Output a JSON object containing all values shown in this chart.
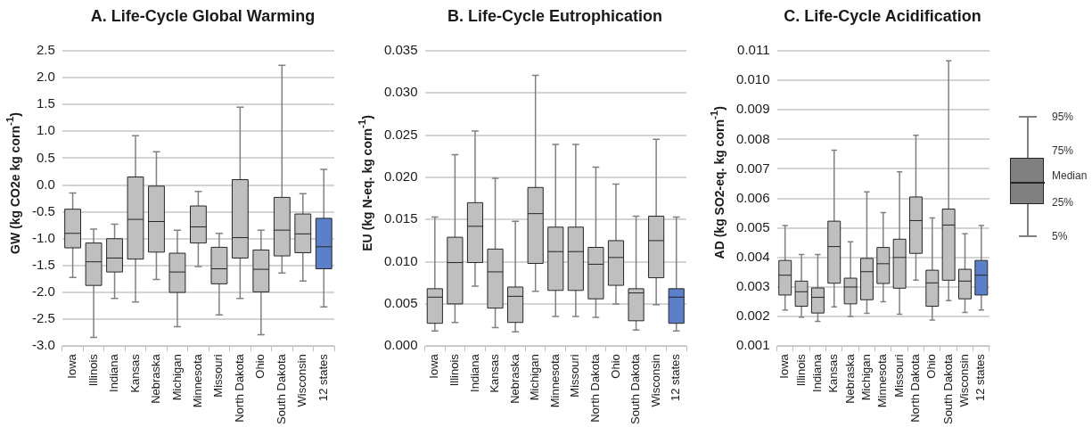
{
  "chart_data": [
    {
      "type": "box",
      "title": "A. Life-Cycle Global Warming",
      "ylabel": "GW (kg CO2e kg corn$^{-1}$)",
      "categories": [
        "Iowa",
        "Illinois",
        "Indiana",
        "Kansas",
        "Nebraska",
        "Michigan",
        "Minnesota",
        "Missouri",
        "North Dakota",
        "Ohio",
        "South Dakota",
        "Wisconsin",
        "12 states"
      ],
      "colors": [
        "#bfbfbf",
        "#bfbfbf",
        "#bfbfbf",
        "#bfbfbf",
        "#bfbfbf",
        "#bfbfbf",
        "#bfbfbf",
        "#bfbfbf",
        "#bfbfbf",
        "#bfbfbf",
        "#bfbfbf",
        "#bfbfbf",
        "#5b7fc9"
      ],
      "boxes": [
        {
          "low": -1.72,
          "q1": -1.17,
          "median": -0.9,
          "q3": -0.45,
          "high": -0.15
        },
        {
          "low": -2.84,
          "q1": -1.87,
          "median": -1.43,
          "q3": -1.08,
          "high": -0.82
        },
        {
          "low": -2.11,
          "q1": -1.62,
          "median": -1.36,
          "q3": -1.0,
          "high": -0.73
        },
        {
          "low": -2.18,
          "q1": -1.38,
          "median": -0.64,
          "q3": 0.15,
          "high": 0.92
        },
        {
          "low": -1.76,
          "q1": -1.25,
          "median": -0.68,
          "q3": -0.02,
          "high": 0.62
        },
        {
          "low": -2.64,
          "q1": -2.0,
          "median": -1.62,
          "q3": -1.27,
          "high": -0.84
        },
        {
          "low": -1.52,
          "q1": -1.08,
          "median": -0.78,
          "q3": -0.39,
          "high": -0.12
        },
        {
          "low": -2.42,
          "q1": -1.84,
          "median": -1.56,
          "q3": -1.16,
          "high": -0.9
        },
        {
          "low": -2.11,
          "q1": -1.36,
          "median": -0.98,
          "q3": 0.1,
          "high": 1.45
        },
        {
          "low": -2.79,
          "q1": -1.99,
          "median": -1.57,
          "q3": -1.21,
          "high": -0.84
        },
        {
          "low": -1.64,
          "q1": -1.32,
          "median": -0.84,
          "q3": -0.23,
          "high": 2.23
        },
        {
          "low": -1.79,
          "q1": -1.26,
          "median": -0.91,
          "q3": -0.54,
          "high": -0.16
        },
        {
          "low": -2.27,
          "q1": -1.56,
          "median": -1.15,
          "q3": -0.62,
          "high": 0.29
        }
      ],
      "ylim": [
        -3.0,
        2.5
      ],
      "yticks": [
        {
          "value": -3.0,
          "label": "-3.0"
        },
        {
          "value": -2.5,
          "label": "-2.5"
        },
        {
          "value": -2.0,
          "label": "-2.0"
        },
        {
          "value": -1.5,
          "label": "-1.5"
        },
        {
          "value": -1.0,
          "label": "-1.0"
        },
        {
          "value": -0.5,
          "label": "-0.5"
        },
        {
          "value": 0.0,
          "label": "0.0"
        },
        {
          "value": 0.5,
          "label": "0.5"
        },
        {
          "value": 1.0,
          "label": "1.0"
        },
        {
          "value": 1.5,
          "label": "1.5"
        },
        {
          "value": 2.0,
          "label": "2.0"
        },
        {
          "value": 2.5,
          "label": "2.5"
        }
      ],
      "grid": "y"
    },
    {
      "type": "box",
      "title": "B. Life-Cycle Eutrophication",
      "ylabel": "EU (kg N-eq. kg corn$^{-1}$)",
      "categories": [
        "Iowa",
        "Illinois",
        "Indiana",
        "Kansas",
        "Nebraska",
        "Michigan",
        "Minnesota",
        "Missouri",
        "North Dakota",
        "Ohio",
        "South Dakota",
        "Wisconsin",
        "12 states"
      ],
      "colors": [
        "#bfbfbf",
        "#bfbfbf",
        "#bfbfbf",
        "#bfbfbf",
        "#bfbfbf",
        "#bfbfbf",
        "#bfbfbf",
        "#bfbfbf",
        "#bfbfbf",
        "#bfbfbf",
        "#bfbfbf",
        "#bfbfbf",
        "#5b7fc9"
      ],
      "boxes": [
        {
          "low": 0.0018,
          "q1": 0.0027,
          "median": 0.0058,
          "q3": 0.0068,
          "high": 0.0153
        },
        {
          "low": 0.0028,
          "q1": 0.005,
          "median": 0.0099,
          "q3": 0.0129,
          "high": 0.0227
        },
        {
          "low": 0.0071,
          "q1": 0.0099,
          "median": 0.0142,
          "q3": 0.017,
          "high": 0.0255
        },
        {
          "low": 0.0022,
          "q1": 0.0045,
          "median": 0.0088,
          "q3": 0.0115,
          "high": 0.0199
        },
        {
          "low": 0.0017,
          "q1": 0.0028,
          "median": 0.0059,
          "q3": 0.007,
          "high": 0.0148
        },
        {
          "low": 0.0065,
          "q1": 0.0098,
          "median": 0.0157,
          "q3": 0.0188,
          "high": 0.0321
        },
        {
          "low": 0.0035,
          "q1": 0.0066,
          "median": 0.0112,
          "q3": 0.0141,
          "high": 0.0239
        },
        {
          "low": 0.0035,
          "q1": 0.0066,
          "median": 0.0112,
          "q3": 0.0141,
          "high": 0.0239
        },
        {
          "low": 0.0034,
          "q1": 0.0056,
          "median": 0.0097,
          "q3": 0.0117,
          "high": 0.0212
        },
        {
          "low": 0.005,
          "q1": 0.0072,
          "median": 0.0105,
          "q3": 0.0125,
          "high": 0.0192
        },
        {
          "low": 0.0019,
          "q1": 0.003,
          "median": 0.0063,
          "q3": 0.0068,
          "high": 0.0154
        },
        {
          "low": 0.0049,
          "q1": 0.0081,
          "median": 0.0125,
          "q3": 0.0154,
          "high": 0.0245
        },
        {
          "low": 0.0018,
          "q1": 0.0027,
          "median": 0.0058,
          "q3": 0.0068,
          "high": 0.0153
        }
      ],
      "ylim": [
        0,
        0.035
      ],
      "yticks": [
        {
          "value": 0,
          "label": "0.000"
        },
        0.005,
        {
          "value": 0.01,
          "label": "0.010"
        },
        0.015,
        {
          "value": 0.02,
          "label": "0.020"
        },
        0.025,
        {
          "value": 0.03,
          "label": "0.030"
        },
        0.035
      ],
      "grid": "y"
    },
    {
      "type": "box",
      "title": "C. Life-Cycle Acidification",
      "ylabel": "AD (kg SO2-eq. kg corn$^{-1}$)",
      "categories": [
        "Iowa",
        "Illinois",
        "Indiana",
        "Kansas",
        "Nebraska",
        "Michigan",
        "Minnesota",
        "Missouri",
        "North Dakota",
        "Ohio",
        "South Dakota",
        "Wisconsin",
        "12 states"
      ],
      "colors": [
        "#bfbfbf",
        "#bfbfbf",
        "#bfbfbf",
        "#bfbfbf",
        "#bfbfbf",
        "#bfbfbf",
        "#bfbfbf",
        "#bfbfbf",
        "#bfbfbf",
        "#bfbfbf",
        "#bfbfbf",
        "#bfbfbf",
        "#5b7fc9"
      ],
      "boxes": [
        {
          "low": 0.00222,
          "q1": 0.00273,
          "median": 0.0034,
          "q3": 0.0039,
          "high": 0.00508
        },
        {
          "low": 0.00198,
          "q1": 0.00235,
          "median": 0.00284,
          "q3": 0.0032,
          "high": 0.0041
        },
        {
          "low": 0.00184,
          "q1": 0.00212,
          "median": 0.00265,
          "q3": 0.00297,
          "high": 0.0041
        },
        {
          "low": 0.00233,
          "q1": 0.00313,
          "median": 0.00437,
          "q3": 0.00523,
          "high": 0.00763
        },
        {
          "low": 0.002,
          "q1": 0.00243,
          "median": 0.003,
          "q3": 0.0033,
          "high": 0.00453
        },
        {
          "low": 0.00211,
          "q1": 0.00257,
          "median": 0.00352,
          "q3": 0.00397,
          "high": 0.00622
        },
        {
          "low": 0.0025,
          "q1": 0.00312,
          "median": 0.00379,
          "q3": 0.00434,
          "high": 0.00552
        },
        {
          "low": 0.00208,
          "q1": 0.00296,
          "median": 0.004,
          "q3": 0.00462,
          "high": 0.0069
        },
        {
          "low": 0.00323,
          "q1": 0.00414,
          "median": 0.00525,
          "q3": 0.00605,
          "high": 0.00814
        },
        {
          "low": 0.00188,
          "q1": 0.00235,
          "median": 0.00314,
          "q3": 0.00357,
          "high": 0.00534
        },
        {
          "low": 0.00254,
          "q1": 0.00323,
          "median": 0.0051,
          "q3": 0.00564,
          "high": 0.01066
        },
        {
          "low": 0.00214,
          "q1": 0.0026,
          "median": 0.0032,
          "q3": 0.0036,
          "high": 0.0048
        },
        {
          "low": 0.00222,
          "q1": 0.00273,
          "median": 0.0034,
          "q3": 0.0039,
          "high": 0.00508
        }
      ],
      "ylim": [
        0.001,
        0.011
      ],
      "yticks": [
        0.001,
        0.002,
        0.003,
        0.004,
        0.005,
        0.006,
        0.007,
        0.008,
        0.009,
        {
          "value": 0.01,
          "label": "0.010"
        },
        0.011
      ],
      "grid": "y",
      "annotations": [
        "95%",
        "75%",
        "Median",
        "25%",
        "5%"
      ]
    }
  ]
}
